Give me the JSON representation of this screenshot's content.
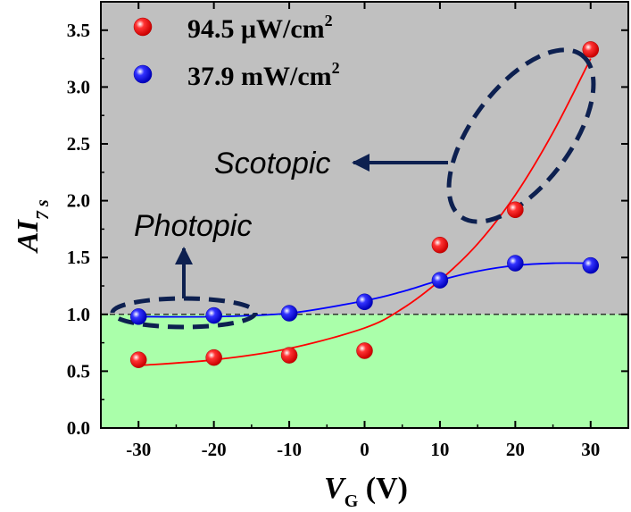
{
  "chart_data": {
    "type": "scatter",
    "xlabel": {
      "main": "V",
      "sub": "G",
      "unit": " (V)"
    },
    "ylabel": {
      "main": "AI",
      "sub": "7 s"
    },
    "xlim": [
      -35,
      35
    ],
    "ylim": [
      0,
      3.75
    ],
    "x_ticks": [
      "-30",
      "-20",
      "-10",
      "0",
      "10",
      "20",
      "30"
    ],
    "x_tick_values": [
      -30,
      -20,
      -10,
      0,
      10,
      20,
      30
    ],
    "y_ticks": [
      "0.0",
      "0.5",
      "1.0",
      "1.5",
      "2.0",
      "2.5",
      "3.0",
      "3.5"
    ],
    "y_tick_values": [
      0,
      0.5,
      1.0,
      1.5,
      2.0,
      2.5,
      3.0,
      3.5
    ],
    "reference_line": 1.0,
    "background": {
      "upper_color": "#c0c0c0",
      "lower_color": "#aaffaa",
      "split_at": 1.0
    },
    "x": [
      -30,
      -20,
      -10,
      0,
      10,
      20,
      30
    ],
    "series": [
      {
        "legend_main": "94.5 μW/cm",
        "legend_sup": "2",
        "color": "#ff0000",
        "values": [
          0.6,
          0.62,
          0.64,
          0.68,
          1.61,
          1.92,
          3.33
        ],
        "fit": [
          [
            -30,
            0.55
          ],
          [
            -20,
            0.6
          ],
          [
            -10,
            0.7
          ],
          [
            0,
            0.88
          ],
          [
            5,
            1.05
          ],
          [
            10,
            1.3
          ],
          [
            15,
            1.62
          ],
          [
            20,
            2.05
          ],
          [
            25,
            2.6
          ],
          [
            30,
            3.25
          ]
        ]
      },
      {
        "legend_main": "37.9 mW/cm",
        "legend_sup": "2",
        "color": "#0000ff",
        "values": [
          0.98,
          0.99,
          1.01,
          1.11,
          1.3,
          1.45,
          1.43
        ],
        "fit": [
          [
            -30,
            0.98
          ],
          [
            -20,
            0.98
          ],
          [
            -10,
            1.01
          ],
          [
            0,
            1.12
          ],
          [
            5,
            1.2
          ],
          [
            10,
            1.3
          ],
          [
            15,
            1.38
          ],
          [
            20,
            1.43
          ],
          [
            25,
            1.45
          ],
          [
            30,
            1.45
          ]
        ]
      }
    ],
    "annotations": [
      {
        "text": "Scotopic",
        "arrow": "left"
      },
      {
        "text": "Photopic",
        "arrow": "up"
      }
    ]
  }
}
